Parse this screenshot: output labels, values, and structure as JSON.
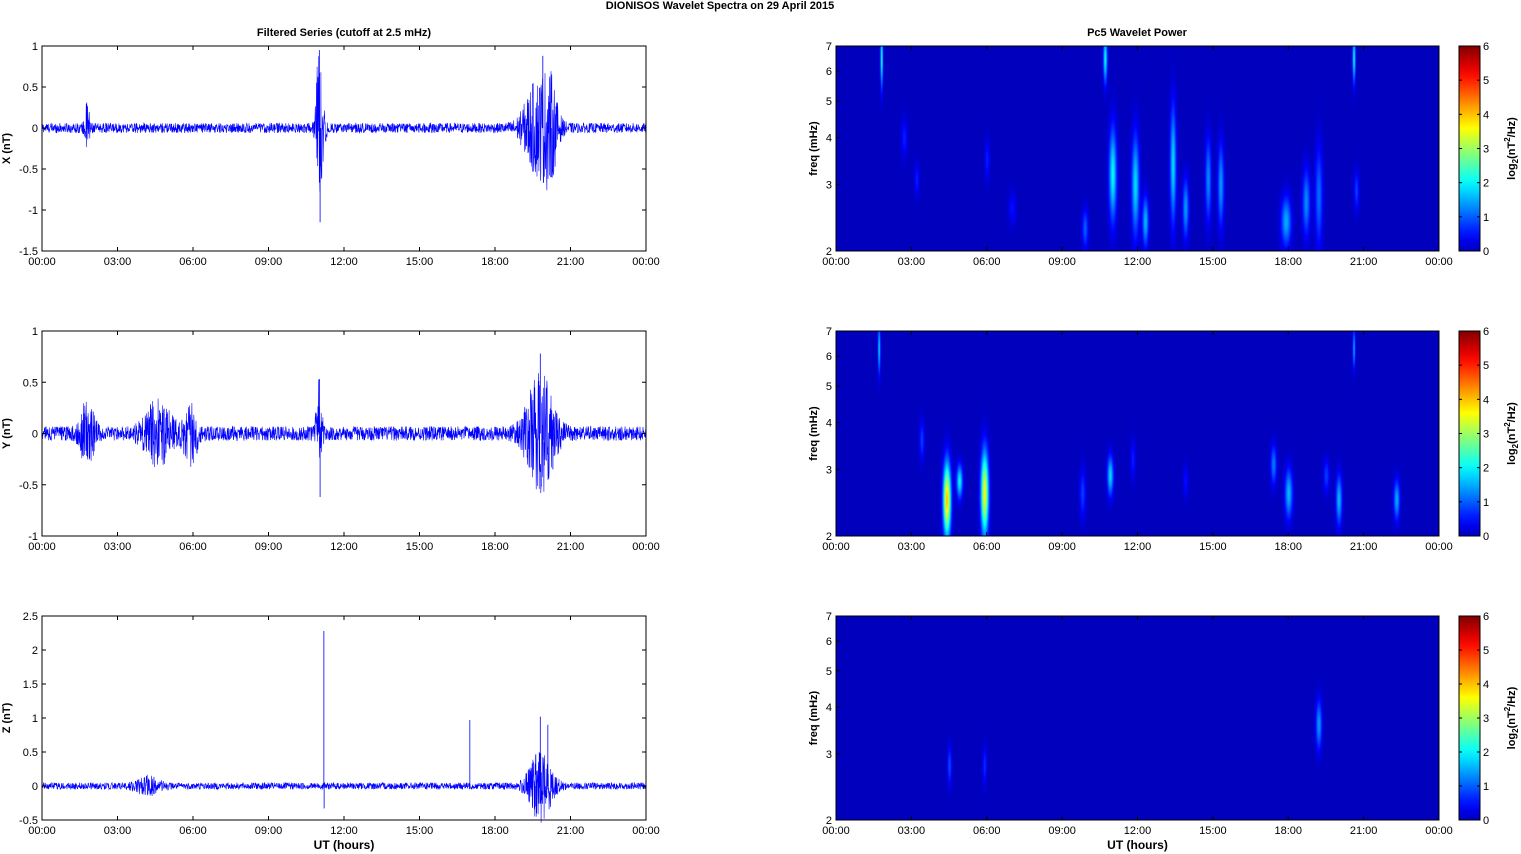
{
  "figure": {
    "title": "DIONISOS Wavelet Spectra on 29 April     2015",
    "left_column_title": "Filtered Series (cutoff at 2.5 mHz)",
    "right_column_title": "Pc5 Wavelet Power",
    "colormap": "jet",
    "colors": {
      "series": "#0000ff",
      "axes": "#000000",
      "background": "#ffffff",
      "spectrum_floor": "#00008f"
    }
  },
  "chart_data": [
    {
      "type": "line",
      "panel": "series-x",
      "series_name": "X",
      "ylabel": "X (nT)",
      "xlabel": "",
      "x_ticks": [
        "00:00",
        "03:00",
        "06:00",
        "09:00",
        "12:00",
        "15:00",
        "18:00",
        "21:00",
        "00:00"
      ],
      "xlim_hours": [
        0,
        24
      ],
      "ylim": [
        -1.5,
        1
      ],
      "y_ticks": [
        1,
        0.5,
        0,
        -0.5,
        -1,
        -1.5
      ],
      "base_amplitude": 0.06,
      "bursts": [
        {
          "t": 1.8,
          "w": 0.1,
          "a": 0.3
        },
        {
          "t": 11.0,
          "w": 0.12,
          "a": 1.0
        },
        {
          "t": 11.2,
          "w": 0.1,
          "a": 0.3
        },
        {
          "t": 19.7,
          "w": 0.6,
          "a": 0.55
        },
        {
          "t": 20.2,
          "w": 0.3,
          "a": 0.4
        }
      ],
      "extremes": [
        {
          "t": 11.02,
          "v": 0.95
        },
        {
          "t": 11.05,
          "v": -1.15
        },
        {
          "t": 19.9,
          "v": 0.88
        },
        {
          "t": 20.25,
          "v": -0.6
        }
      ]
    },
    {
      "type": "line",
      "panel": "series-y",
      "series_name": "Y",
      "ylabel": "Y (nT)",
      "xlabel": "",
      "x_ticks": [
        "00:00",
        "03:00",
        "06:00",
        "09:00",
        "12:00",
        "15:00",
        "18:00",
        "21:00",
        "00:00"
      ],
      "xlim_hours": [
        0,
        24
      ],
      "ylim": [
        -1,
        1
      ],
      "y_ticks": [
        1,
        0.5,
        0,
        -0.5,
        -1
      ],
      "base_amplitude": 0.07,
      "bursts": [
        {
          "t": 1.8,
          "w": 0.3,
          "a": 0.3
        },
        {
          "t": 4.6,
          "w": 0.6,
          "a": 0.28
        },
        {
          "t": 5.9,
          "w": 0.3,
          "a": 0.28
        },
        {
          "t": 11.0,
          "w": 0.12,
          "a": 0.55
        },
        {
          "t": 19.8,
          "w": 0.6,
          "a": 0.55
        }
      ],
      "extremes": [
        {
          "t": 11.03,
          "v": 0.53
        },
        {
          "t": 11.05,
          "v": -0.62
        },
        {
          "t": 19.8,
          "v": 0.78
        },
        {
          "t": 20.3,
          "v": -0.35
        }
      ]
    },
    {
      "type": "line",
      "panel": "series-z",
      "series_name": "Z",
      "ylabel": "Z (nT)",
      "xlabel": "UT (hours)",
      "x_ticks": [
        "00:00",
        "03:00",
        "06:00",
        "09:00",
        "12:00",
        "15:00",
        "18:00",
        "21:00",
        "00:00"
      ],
      "xlim_hours": [
        0,
        24
      ],
      "ylim": [
        -0.5,
        2.5
      ],
      "y_ticks": [
        2.5,
        2,
        1.5,
        1,
        0.5,
        0,
        -0.5
      ],
      "base_amplitude": 0.05,
      "bursts": [
        {
          "t": 4.2,
          "w": 0.5,
          "a": 0.12
        },
        {
          "t": 19.8,
          "w": 0.5,
          "a": 0.5
        }
      ],
      "extremes": [
        {
          "t": 11.2,
          "v": 2.28
        },
        {
          "t": 11.21,
          "v": -0.33
        },
        {
          "t": 17.0,
          "v": 0.97
        },
        {
          "t": 19.8,
          "v": 1.02
        },
        {
          "t": 20.1,
          "v": 0.9
        },
        {
          "t": 19.6,
          "v": -0.3
        }
      ]
    },
    {
      "type": "heatmap",
      "panel": "spectrum-x",
      "ylabel": "freq (mHz)",
      "xlabel": "",
      "x_ticks": [
        "00:00",
        "03:00",
        "06:00",
        "09:00",
        "12:00",
        "15:00",
        "18:00",
        "21:00",
        "00:00"
      ],
      "xlim_hours": [
        0,
        24
      ],
      "ylim_mhz": [
        2,
        7
      ],
      "y_scale": "log",
      "y_ticks": [
        2,
        3,
        4,
        5,
        6,
        7
      ],
      "colorbar": {
        "label": "log2(nT2/Hz)",
        "ticks": [
          0,
          1,
          2,
          3,
          4,
          5,
          6
        ],
        "range": [
          0,
          6
        ]
      },
      "blobs": [
        {
          "t": 1.8,
          "f": 6.5,
          "dt": 0.05,
          "df": 0.18,
          "v": 2.2
        },
        {
          "t": 2.7,
          "f": 4.0,
          "dt": 0.12,
          "df": 0.12,
          "v": 0.6
        },
        {
          "t": 3.2,
          "f": 3.1,
          "dt": 0.1,
          "df": 0.1,
          "v": 0.6
        },
        {
          "t": 6.0,
          "f": 3.5,
          "dt": 0.1,
          "df": 0.12,
          "v": 0.6
        },
        {
          "t": 7.0,
          "f": 2.6,
          "dt": 0.15,
          "df": 0.1,
          "v": 0.5
        },
        {
          "t": 9.9,
          "f": 2.3,
          "dt": 0.12,
          "df": 0.12,
          "v": 1.0
        },
        {
          "t": 10.7,
          "f": 6.5,
          "dt": 0.08,
          "df": 0.15,
          "v": 2.0
        },
        {
          "t": 11.0,
          "f": 3.2,
          "dt": 0.15,
          "df": 0.28,
          "v": 2.0
        },
        {
          "t": 11.9,
          "f": 3.0,
          "dt": 0.15,
          "df": 0.3,
          "v": 1.8
        },
        {
          "t": 12.3,
          "f": 2.4,
          "dt": 0.12,
          "df": 0.15,
          "v": 1.6
        },
        {
          "t": 13.4,
          "f": 3.4,
          "dt": 0.12,
          "df": 0.35,
          "v": 1.8
        },
        {
          "t": 13.9,
          "f": 2.6,
          "dt": 0.12,
          "df": 0.18,
          "v": 1.4
        },
        {
          "t": 14.8,
          "f": 3.1,
          "dt": 0.12,
          "df": 0.25,
          "v": 1.3
        },
        {
          "t": 15.3,
          "f": 3.0,
          "dt": 0.12,
          "df": 0.25,
          "v": 1.4
        },
        {
          "t": 17.9,
          "f": 2.4,
          "dt": 0.2,
          "df": 0.15,
          "v": 1.5
        },
        {
          "t": 18.7,
          "f": 2.7,
          "dt": 0.15,
          "df": 0.2,
          "v": 1.3
        },
        {
          "t": 19.2,
          "f": 2.8,
          "dt": 0.15,
          "df": 0.3,
          "v": 1.1
        },
        {
          "t": 20.6,
          "f": 6.5,
          "dt": 0.06,
          "df": 0.15,
          "v": 2.0
        },
        {
          "t": 20.7,
          "f": 2.9,
          "dt": 0.1,
          "df": 0.12,
          "v": 0.8
        }
      ]
    },
    {
      "type": "heatmap",
      "panel": "spectrum-y",
      "ylabel": "freq (mHz)",
      "xlabel": "",
      "x_ticks": [
        "00:00",
        "03:00",
        "06:00",
        "09:00",
        "12:00",
        "15:00",
        "18:00",
        "21:00",
        "00:00"
      ],
      "xlim_hours": [
        0,
        24
      ],
      "ylim_mhz": [
        2,
        7
      ],
      "y_scale": "log",
      "y_ticks": [
        2,
        3,
        4,
        5,
        6,
        7
      ],
      "colorbar": {
        "label": "log2(nT2/Hz)",
        "ticks": [
          0,
          1,
          2,
          3,
          4,
          5,
          6
        ],
        "range": [
          0,
          6
        ]
      },
      "blobs": [
        {
          "t": 1.7,
          "f": 6.3,
          "dt": 0.05,
          "df": 0.15,
          "v": 1.8
        },
        {
          "t": 3.4,
          "f": 3.6,
          "dt": 0.1,
          "df": 0.12,
          "v": 0.8
        },
        {
          "t": 4.4,
          "f": 2.5,
          "dt": 0.15,
          "df": 0.22,
          "v": 4.0
        },
        {
          "t": 4.9,
          "f": 2.8,
          "dt": 0.12,
          "df": 0.1,
          "v": 2.0
        },
        {
          "t": 5.9,
          "f": 2.6,
          "dt": 0.15,
          "df": 0.25,
          "v": 3.6
        },
        {
          "t": 9.8,
          "f": 2.6,
          "dt": 0.12,
          "df": 0.15,
          "v": 0.8
        },
        {
          "t": 10.9,
          "f": 2.9,
          "dt": 0.12,
          "df": 0.12,
          "v": 1.8
        },
        {
          "t": 11.8,
          "f": 3.2,
          "dt": 0.1,
          "df": 0.12,
          "v": 0.6
        },
        {
          "t": 13.9,
          "f": 2.8,
          "dt": 0.1,
          "df": 0.1,
          "v": 0.5
        },
        {
          "t": 17.4,
          "f": 3.1,
          "dt": 0.12,
          "df": 0.12,
          "v": 1.2
        },
        {
          "t": 18.0,
          "f": 2.6,
          "dt": 0.15,
          "df": 0.15,
          "v": 1.6
        },
        {
          "t": 19.5,
          "f": 2.9,
          "dt": 0.12,
          "df": 0.1,
          "v": 0.8
        },
        {
          "t": 20.0,
          "f": 2.5,
          "dt": 0.12,
          "df": 0.15,
          "v": 1.6
        },
        {
          "t": 20.6,
          "f": 6.3,
          "dt": 0.05,
          "df": 0.12,
          "v": 1.5
        },
        {
          "t": 22.3,
          "f": 2.5,
          "dt": 0.12,
          "df": 0.12,
          "v": 1.5
        }
      ]
    },
    {
      "type": "heatmap",
      "panel": "spectrum-z",
      "ylabel": "freq (mHz)",
      "xlabel": "UT (hours)",
      "x_ticks": [
        "00:00",
        "03:00",
        "06:00",
        "09:00",
        "12:00",
        "15:00",
        "18:00",
        "21:00",
        "00:00"
      ],
      "xlim_hours": [
        0,
        24
      ],
      "ylim_mhz": [
        2,
        7
      ],
      "y_scale": "log",
      "y_ticks": [
        2,
        3,
        4,
        5,
        6,
        7
      ],
      "colorbar": {
        "label": "log2(nT2/Hz)",
        "ticks": [
          0,
          1,
          2,
          3,
          4,
          5,
          6
        ],
        "range": [
          0,
          6
        ]
      },
      "blobs": [
        {
          "t": 4.5,
          "f": 2.8,
          "dt": 0.08,
          "df": 0.12,
          "v": 0.9
        },
        {
          "t": 5.9,
          "f": 2.8,
          "dt": 0.08,
          "df": 0.12,
          "v": 0.7
        },
        {
          "t": 19.2,
          "f": 3.6,
          "dt": 0.12,
          "df": 0.15,
          "v": 1.4
        }
      ]
    }
  ]
}
